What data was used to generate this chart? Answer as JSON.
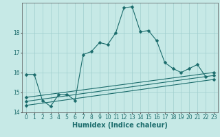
{
  "title": "",
  "xlabel": "Humidex (Indice chaleur)",
  "ylabel": "",
  "background_color": "#c6e9e6",
  "line_color": "#1a6b6b",
  "grid_color": "#a0cece",
  "xlim": [
    -0.5,
    23.5
  ],
  "ylim": [
    14,
    19.5
  ],
  "yticks": [
    14,
    15,
    16,
    17,
    18
  ],
  "xticks": [
    0,
    1,
    2,
    3,
    4,
    5,
    6,
    7,
    8,
    9,
    10,
    11,
    12,
    13,
    14,
    15,
    16,
    17,
    18,
    19,
    20,
    21,
    22,
    23
  ],
  "series1_x": [
    0,
    1,
    2,
    3,
    4,
    5,
    6,
    7,
    8,
    9,
    10,
    11,
    12,
    13,
    14,
    15,
    16,
    17,
    18,
    19,
    20,
    21,
    22
  ],
  "series1_y": [
    15.9,
    15.9,
    14.6,
    14.3,
    14.9,
    14.9,
    14.6,
    16.9,
    17.05,
    17.5,
    17.4,
    18.0,
    19.25,
    19.3,
    18.05,
    18.1,
    17.6,
    16.5,
    16.2,
    16.0,
    16.2,
    16.4,
    15.8
  ],
  "series2_x": [
    0,
    23
  ],
  "series2_y": [
    14.75,
    16.0
  ],
  "series3_x": [
    0,
    23
  ],
  "series3_y": [
    14.55,
    15.85
  ],
  "series4_x": [
    0,
    23
  ],
  "series4_y": [
    14.35,
    15.65
  ],
  "title_fontsize": 7,
  "tick_fontsize": 5.5,
  "xlabel_fontsize": 7
}
